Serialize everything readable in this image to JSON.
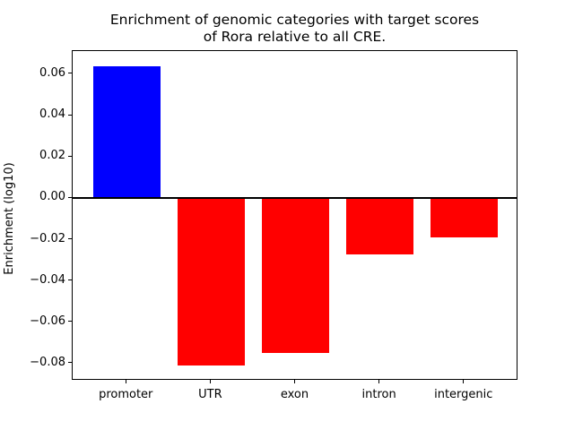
{
  "chart_data": {
    "type": "bar",
    "title": "Enrichment of genomic categories with target scores\nof Rora relative to all CRE.",
    "title_line1": "Enrichment of genomic categories with target scores",
    "title_line2": "of Rora relative to all CRE.",
    "xlabel": "",
    "ylabel": "Enrichment (log10)",
    "categories": [
      "promoter",
      "UTR",
      "exon",
      "intron",
      "intergenic"
    ],
    "values": [
      0.064,
      -0.081,
      -0.075,
      -0.027,
      -0.019
    ],
    "colors": [
      "#0000ff",
      "#ff0000",
      "#ff0000",
      "#ff0000",
      "#ff0000"
    ],
    "positive_color": "#0000ff",
    "negative_color": "#ff0000",
    "ylim": [
      -0.08825,
      0.07125
    ],
    "xlim": [
      -0.64,
      4.64
    ],
    "bar_width": 0.8,
    "yticks": [
      {
        "value": 0.06,
        "label": "0.06"
      },
      {
        "value": 0.04,
        "label": "0.04"
      },
      {
        "value": 0.02,
        "label": "0.02"
      },
      {
        "value": 0.0,
        "label": "0.00"
      },
      {
        "value": -0.02,
        "label": "−0.02"
      },
      {
        "value": -0.04,
        "label": "−0.04"
      },
      {
        "value": -0.06,
        "label": "−0.06"
      },
      {
        "value": -0.08,
        "label": "−0.08"
      }
    ],
    "zero_line": {
      "value": 0,
      "color": "#000000"
    },
    "grid": false,
    "legend": null
  }
}
